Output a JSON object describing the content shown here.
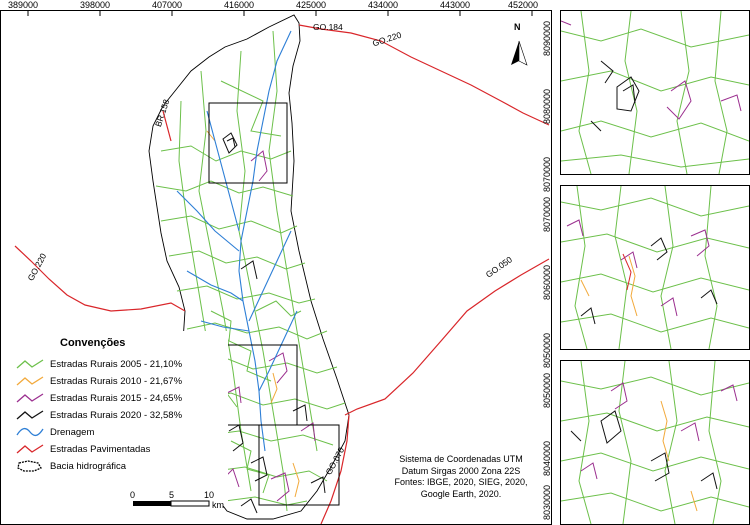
{
  "main_map": {
    "x_ticks": [
      "389000",
      "398000",
      "407000",
      "416000",
      "425000",
      "434000",
      "443000",
      "452000"
    ],
    "road_labels": {
      "go184": "GO.184",
      "go220_top": "GO.220",
      "br158": "BR.158",
      "go220_left": "GO.220",
      "go050": "GO.050",
      "go070": "GO.070"
    },
    "north_letter": "N"
  },
  "inset_y_ticks": {
    "top": [
      "8090000",
      "8080000",
      "8070000"
    ],
    "middle": [
      "8070000",
      "8060000",
      "8050000"
    ],
    "bottom": [
      "8050000",
      "8040000",
      "8030000"
    ]
  },
  "legend": {
    "title": "Convenções",
    "items": [
      {
        "label": "Estradas Rurais 2005 - 21,10%",
        "color": "#6cc04a",
        "kind": "zigzag"
      },
      {
        "label": "Estradas Rurais 2010 - 21,67%",
        "color": "#f2a93b",
        "kind": "zigzag"
      },
      {
        "label": "Estradas Rurais 2015 - 24,65%",
        "color": "#9b2f8f",
        "kind": "zigzag"
      },
      {
        "label": "Estradas Rurais 2020 - 32,58%",
        "color": "#111111",
        "kind": "zigzag"
      },
      {
        "label": "Drenagem",
        "color": "#2e7fd6",
        "kind": "wave"
      },
      {
        "label": "Estradas Pavimentadas",
        "color": "#d9262a",
        "kind": "zigzag"
      },
      {
        "label": "Bacia hidrográfica",
        "color": "#000000",
        "kind": "polygon"
      }
    ]
  },
  "scale_bar": {
    "labels": [
      "0",
      "5",
      "10"
    ],
    "unit": "km"
  },
  "info_block": [
    "Sistema de Coordenadas UTM",
    "Datum Sirgas 2000 Zona 22S",
    "Fontes: IBGE, 2020, SIEG, 2020,",
    "Google Earth, 2020."
  ],
  "colors": {
    "rural_2005": "#6cc04a",
    "rural_2010": "#f2a93b",
    "rural_2015": "#9b2f8f",
    "rural_2020": "#111111",
    "drainage": "#2e7fd6",
    "paved": "#d9262a"
  }
}
